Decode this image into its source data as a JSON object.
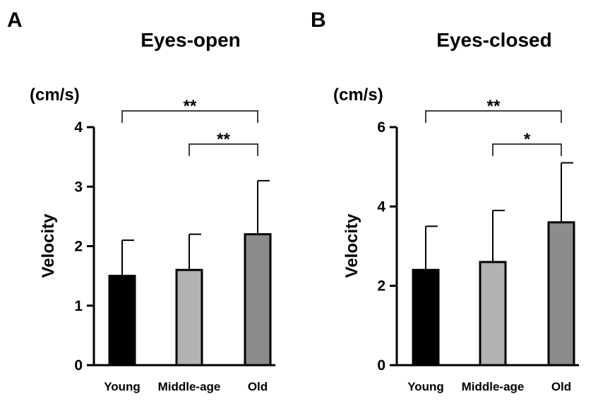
{
  "chart_data": [
    {
      "type": "bar",
      "panel": "A",
      "title": "Eyes-open",
      "unit": "(cm/s)",
      "ylabel": "Velocity",
      "xlabel": "",
      "categories": [
        "Young",
        "Middle-age",
        "Old"
      ],
      "values": [
        1.5,
        1.6,
        2.2
      ],
      "error_upper": [
        0.6,
        0.6,
        0.9
      ],
      "colors": [
        "#000000",
        "#b2b2b2",
        "#8c8c8c"
      ],
      "ylim": [
        0,
        4
      ],
      "yticks": [
        0,
        1,
        2,
        3,
        4
      ],
      "grid": false,
      "significance": [
        {
          "from": 0,
          "to": 2,
          "label": "**"
        },
        {
          "from": 1,
          "to": 2,
          "label": "**"
        }
      ]
    },
    {
      "type": "bar",
      "panel": "B",
      "title": "Eyes-closed",
      "unit": "(cm/s)",
      "ylabel": "Velocity",
      "xlabel": "",
      "categories": [
        "Young",
        "Middle-age",
        "Old"
      ],
      "values": [
        2.4,
        2.6,
        3.6
      ],
      "error_upper": [
        1.1,
        1.3,
        1.5
      ],
      "colors": [
        "#000000",
        "#b2b2b2",
        "#8c8c8c"
      ],
      "ylim": [
        0,
        6
      ],
      "yticks": [
        0,
        2,
        4,
        6
      ],
      "grid": false,
      "significance": [
        {
          "from": 0,
          "to": 2,
          "label": "**"
        },
        {
          "from": 1,
          "to": 2,
          "label": "*"
        }
      ]
    }
  ]
}
